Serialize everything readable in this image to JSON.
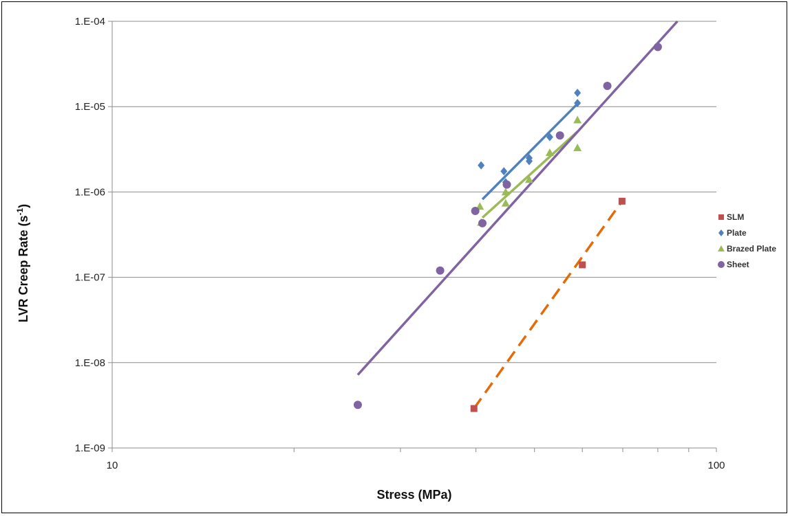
{
  "chart_data": {
    "type": "scatter",
    "x_scale": "log",
    "y_scale": "log",
    "xlim": [
      10,
      100
    ],
    "ylim": [
      1e-09,
      0.0001
    ],
    "xlabel": "Stress (MPa)",
    "ylabel": {
      "base": "LVR Creep Rate (s",
      "sup": "-1",
      "end": ")"
    },
    "x_ticks": [
      {
        "value": 10,
        "label": "10"
      },
      {
        "value": 100,
        "label": "100"
      }
    ],
    "y_ticks": [
      {
        "value": 1e-09,
        "label": "1.E-09"
      },
      {
        "value": 1e-08,
        "label": "1.E-08"
      },
      {
        "value": 1e-07,
        "label": "1.E-07"
      },
      {
        "value": 1e-06,
        "label": "1.E-06"
      },
      {
        "value": 1e-05,
        "label": "1.E-05"
      },
      {
        "value": 0.0001,
        "label": "1.E-04"
      }
    ],
    "grid": "horizontal major gridlines",
    "legend_position": "right",
    "series": [
      {
        "name": "SLM",
        "marker": "square",
        "color": "#C0504D",
        "x": [
          39.7,
          60.0,
          69.8
        ],
        "y": [
          2.9e-09,
          1.4e-07,
          7.8e-07
        ],
        "trendline": {
          "x": [
            39.7,
            69.8
          ],
          "y": [
            2.9e-09,
            7.8e-07
          ],
          "color": "#E36C09",
          "dash": true
        }
      },
      {
        "name": "Plate",
        "marker": "diamond",
        "color": "#4F81BD",
        "x": [
          40.8,
          44.5,
          44.8,
          49.0,
          49.0,
          53.0,
          58.9,
          58.9
        ],
        "y": [
          2.05e-06,
          1.75e-06,
          1.3e-06,
          2.5e-06,
          2.3e-06,
          4.4e-06,
          1.45e-05,
          1.1e-05
        ],
        "trendline": {
          "x": [
            41.0,
            58.9
          ],
          "y": [
            8.2e-07,
            1.08e-05
          ],
          "color": "#4F81BD",
          "dash": false
        }
      },
      {
        "name": "Brazed Plate",
        "marker": "triangle",
        "color": "#9BBB59",
        "x": [
          40.8,
          40.6,
          44.8,
          44.8,
          49.0,
          53.0,
          58.9,
          58.9
        ],
        "y": [
          4.4e-07,
          6.8e-07,
          7.4e-07,
          1e-06,
          1.4e-06,
          2.9e-06,
          3.3e-06,
          7e-06
        ],
        "trendline": {
          "x": [
            41.0,
            58.9
          ],
          "y": [
            5e-07,
            5.1e-06
          ],
          "color": "#9BBB59",
          "dash": false
        }
      },
      {
        "name": "Sheet",
        "marker": "circle",
        "color": "#8064A2",
        "x": [
          25.5,
          34.9,
          39.9,
          41.0,
          45.0,
          55.1,
          66.0,
          80.0
        ],
        "y": [
          3.2e-09,
          1.2e-07,
          6e-07,
          4.3e-07,
          1.22e-06,
          4.6e-06,
          1.75e-05,
          5e-05
        ],
        "trendline": {
          "x": [
            25.5,
            86.2
          ],
          "y": [
            7.2e-09,
            0.0001
          ],
          "color": "#8064A2",
          "dash": false
        }
      }
    ]
  }
}
